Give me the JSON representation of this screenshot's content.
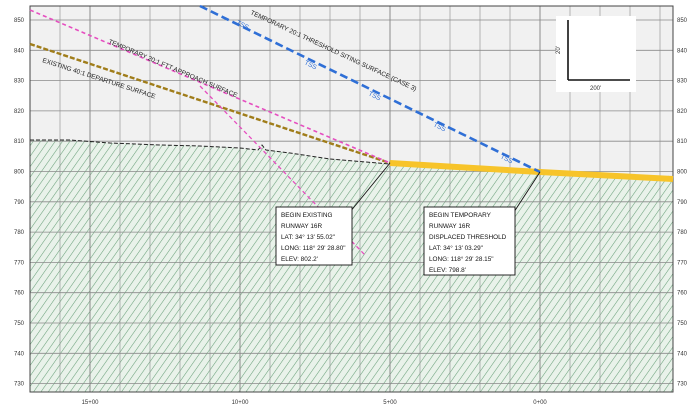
{
  "elevations": [
    "850",
    "840",
    "830",
    "820",
    "810",
    "800",
    "790",
    "780",
    "770",
    "760",
    "750",
    "740",
    "730"
  ],
  "stations": [
    "15+00",
    "10+00",
    "5+00",
    "0+00"
  ],
  "surfaces": {
    "departure": "EXISTING 40:1 DEPARTURE SURFACE",
    "approach": "TEMPORARY 20:1 FTT APPROACH SURFACE",
    "threshold": "TEMPORARY 20:1 THRESHOLD SITING SURFACE (CASE 3)",
    "tss_tag": "TSS"
  },
  "callouts": {
    "existing": [
      "BEGIN EXISTING",
      "RUNWAY 16R",
      "LAT: 34° 13' 55.02\"",
      "LONG: 118° 29' 28.80\"",
      "ELEV: 802.2'"
    ],
    "temporary": [
      "BEGIN TEMPORARY",
      "RUNWAY 16R",
      "DISPLACED THRESHOLD",
      "LAT: 34° 13' 03.29\"",
      "LONG: 118° 29' 28.15\"",
      "ELEV: 798.8'"
    ]
  },
  "scale": {
    "vertical": "20'",
    "horizontal": "200'"
  },
  "colors": {
    "departure": "#a07d1a",
    "approach": "#e64ec0",
    "threshold": "#2f6fd6",
    "runway": "#f7c42a",
    "ground_hatch": "#6aa07a",
    "grid": "#8a8a8a"
  }
}
